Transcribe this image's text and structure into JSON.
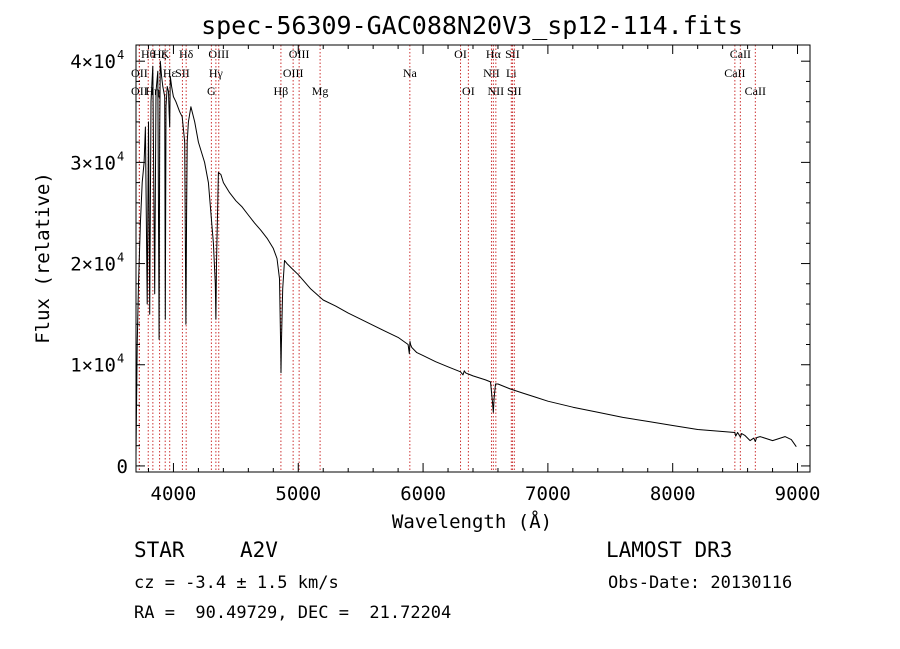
{
  "chart_data": {
    "type": "line",
    "title": "spec-56309-GAC088N20V3_sp12-114.fits",
    "xlabel": "Wavelength (Å)",
    "ylabel": "Flux (relative)",
    "xlim": [
      3700,
      9100
    ],
    "ylim": [
      -600,
      41600
    ],
    "xticks": [
      {
        "value": 4000,
        "label": "4000"
      },
      {
        "value": 5000,
        "label": "5000"
      },
      {
        "value": 6000,
        "label": "6000"
      },
      {
        "value": 7000,
        "label": "7000"
      },
      {
        "value": 8000,
        "label": "8000"
      },
      {
        "value": 9000,
        "label": "9000"
      }
    ],
    "yticks": [
      {
        "value": 0,
        "mantissa": "0",
        "exponent": ""
      },
      {
        "value": 10000,
        "mantissa": "1×10",
        "exponent": "4"
      },
      {
        "value": 20000,
        "mantissa": "2×10",
        "exponent": "4"
      },
      {
        "value": 30000,
        "mantissa": "3×10",
        "exponent": "4"
      },
      {
        "value": 40000,
        "mantissa": "4×10",
        "exponent": "4"
      }
    ],
    "series": [
      {
        "name": "spectrum",
        "color": "#000000",
        "x": [
          3700,
          3710,
          3720,
          3735,
          3750,
          3765,
          3775,
          3790,
          3800,
          3810,
          3820,
          3835,
          3850,
          3860,
          3875,
          3885,
          3890,
          3895,
          3905,
          3915,
          3930,
          3935,
          3940,
          3950,
          3960,
          3965,
          3970,
          3975,
          3985,
          4000,
          4020,
          4050,
          4070,
          4090,
          4100,
          4105,
          4110,
          4120,
          4140,
          4170,
          4200,
          4250,
          4280,
          4300,
          4320,
          4335,
          4340,
          4345,
          4360,
          4380,
          4400,
          4450,
          4500,
          4550,
          4600,
          4650,
          4700,
          4750,
          4800,
          4830,
          4850,
          4860,
          4862,
          4865,
          4875,
          4890,
          4910,
          4950,
          5000,
          5100,
          5200,
          5300,
          5400,
          5500,
          5600,
          5700,
          5800,
          5880,
          5890,
          5895,
          5900,
          5910,
          5950,
          6000,
          6100,
          6200,
          6300,
          6320,
          6330,
          6340,
          6360,
          6400,
          6500,
          6540,
          6555,
          6563,
          6570,
          6580,
          6600,
          6700,
          6800,
          6900,
          7000,
          7200,
          7400,
          7600,
          7800,
          8000,
          8200,
          8400,
          8498,
          8505,
          8520,
          8542,
          8552,
          8580,
          8620,
          8650,
          8662,
          8672,
          8700,
          8800,
          8900,
          8950,
          8990
        ],
        "y": [
          1000,
          12000,
          18000,
          24000,
          28000,
          30000,
          33500,
          16000,
          34000,
          15000,
          36000,
          39500,
          17000,
          37000,
          39000,
          12500,
          33000,
          40000,
          38500,
          37500,
          36500,
          14500,
          35500,
          37500,
          37000,
          35000,
          33500,
          38500,
          37500,
          36500,
          36000,
          35000,
          34500,
          32000,
          14000,
          25000,
          32000,
          34000,
          35500,
          34000,
          32000,
          30000,
          28000,
          25000,
          22000,
          18000,
          14500,
          20000,
          29000,
          28800,
          28000,
          27000,
          26200,
          25600,
          24800,
          24000,
          23300,
          22500,
          21500,
          20500,
          18500,
          11000,
          9200,
          12000,
          17500,
          20300,
          20000,
          19500,
          18900,
          17500,
          16400,
          15800,
          15100,
          14500,
          13900,
          13300,
          12700,
          12000,
          11100,
          12300,
          12000,
          11700,
          11200,
          10900,
          10300,
          9800,
          9300,
          9000,
          9400,
          9200,
          9100,
          8900,
          8500,
          8300,
          6500,
          5300,
          6800,
          8100,
          8100,
          7600,
          7200,
          6800,
          6400,
          5800,
          5300,
          4800,
          4400,
          4000,
          3600,
          3400,
          3300,
          2950,
          3300,
          2850,
          3200,
          3000,
          2500,
          2750,
          2400,
          2800,
          2900,
          2500,
          2900,
          2600,
          1900
        ]
      }
    ],
    "lines": [
      {
        "label": "OII",
        "wavelength": 3727,
        "row": 2
      },
      {
        "label": "OII",
        "wavelength": 3727,
        "row": 1
      },
      {
        "label": "Hθ",
        "wavelength": 3798,
        "row": 0
      },
      {
        "label": "Hη",
        "wavelength": 3835,
        "row": 2
      },
      {
        "label": "Hζ",
        "wavelength": 3889,
        "row": 0
      },
      {
        "label": "K",
        "wavelength": 3934,
        "row": 0
      },
      {
        "label": "Hε",
        "wavelength": 3970,
        "row": 1
      },
      {
        "label": "SII",
        "wavelength": 4072,
        "row": 1
      },
      {
        "label": "Hδ",
        "wavelength": 4102,
        "row": 0
      },
      {
        "label": "G",
        "wavelength": 4304,
        "row": 2
      },
      {
        "label": "Hγ",
        "wavelength": 4340,
        "row": 1
      },
      {
        "label": "OIII",
        "wavelength": 4363,
        "row": 0
      },
      {
        "label": "Hβ",
        "wavelength": 4861,
        "row": 2
      },
      {
        "label": "OIII",
        "wavelength": 4959,
        "row": 1
      },
      {
        "label": "OIII",
        "wavelength": 5007,
        "row": 0
      },
      {
        "label": "Mg",
        "wavelength": 5175,
        "row": 2
      },
      {
        "label": "Na",
        "wavelength": 5894,
        "row": 1
      },
      {
        "label": "OI",
        "wavelength": 6300,
        "row": 0
      },
      {
        "label": "OI",
        "wavelength": 6363,
        "row": 2
      },
      {
        "label": "NII",
        "wavelength": 6548,
        "row": 1
      },
      {
        "label": "Hα",
        "wavelength": 6563,
        "row": 0
      },
      {
        "label": "NII",
        "wavelength": 6583,
        "row": 2
      },
      {
        "label": "Li",
        "wavelength": 6707,
        "row": 1
      },
      {
        "label": "SII",
        "wavelength": 6716,
        "row": 0
      },
      {
        "label": "SII",
        "wavelength": 6731,
        "row": 2
      },
      {
        "label": "CaII",
        "wavelength": 8498,
        "row": 1
      },
      {
        "label": "CaII",
        "wavelength": 8542,
        "row": 0
      },
      {
        "label": "CaII",
        "wavelength": 8662,
        "row": 2
      }
    ],
    "line_color": "#cc3333"
  },
  "info": {
    "class_label": "STAR",
    "subclass": "A2V",
    "survey": "LAMOST DR3",
    "cz": "cz = -3.4 ± 1.5 km/s",
    "obs_date": "Obs-Date: 20130116",
    "coords": "RA =  90.49729, DEC =  21.72204"
  }
}
